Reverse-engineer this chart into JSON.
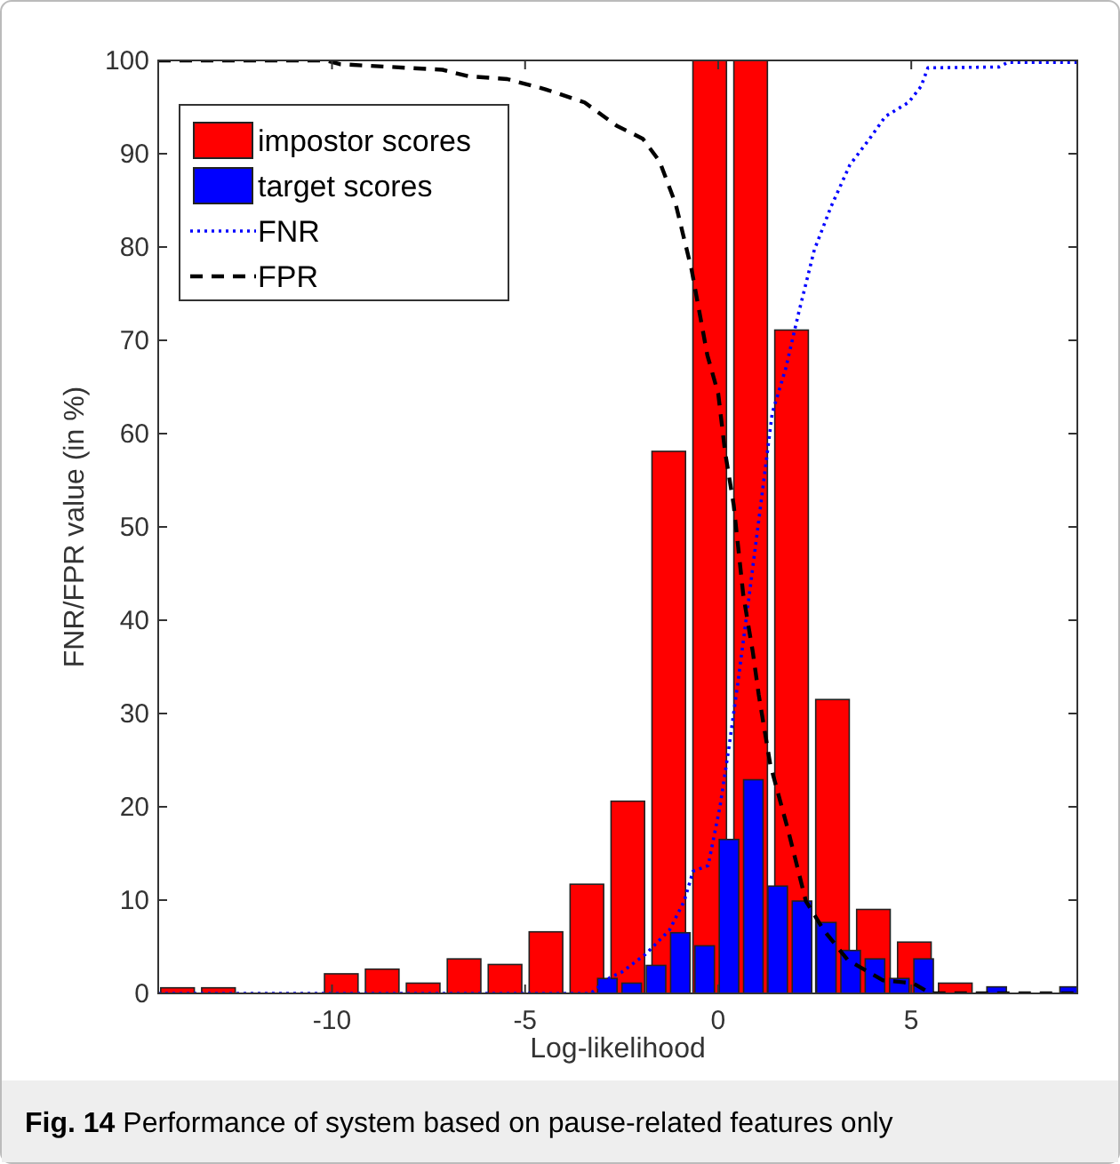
{
  "chart_data": {
    "type": "bar",
    "xlabel": "Log-likelihood",
    "ylabel": "FNR/FPR value (in %)",
    "xlim": [
      -14.5,
      9.3
    ],
    "xticks": [
      -10,
      -5,
      0,
      5
    ],
    "ylim": [
      0,
      100
    ],
    "yticks": [
      0,
      10,
      20,
      30,
      40,
      50,
      60,
      70,
      80,
      90,
      100
    ],
    "grid": false,
    "legend": "top left",
    "annotations": [
      "Fig. 14 Performance of system based on pause-related features only"
    ],
    "series": [
      {
        "name": "impostor scores",
        "color": "#ff0000",
        "x": [
          -14.0,
          -12.94,
          -11.88,
          -10.82,
          -9.76,
          -8.7,
          -7.64,
          -6.58,
          -5.52,
          -4.46,
          -3.4,
          -2.34,
          -1.28,
          -0.22,
          0.84,
          1.9,
          2.96,
          4.02,
          5.08,
          6.14
        ],
        "values": [
          0.6,
          0.6,
          0,
          0,
          2.1,
          2.6,
          1.1,
          3.7,
          3.1,
          6.6,
          11.7,
          20.6,
          58.1,
          100,
          100,
          71.1,
          31.5,
          9.0,
          5.5,
          1.1
        ]
      },
      {
        "name": "target scores",
        "color": "#0000ff",
        "x": [
          -2.87,
          -2.24,
          -1.61,
          -0.98,
          -0.35,
          0.28,
          0.91,
          1.54,
          2.17,
          2.8,
          3.43,
          4.06,
          4.69,
          5.32,
          5.95,
          6.58,
          7.21,
          7.84,
          8.47,
          9.1
        ],
        "values": [
          1.6,
          1.1,
          3.0,
          6.5,
          5.1,
          16.5,
          22.9,
          11.5,
          9.9,
          7.6,
          4.6,
          3.7,
          1.6,
          3.7,
          0,
          0,
          0.7,
          0,
          0,
          0.7
        ]
      },
      {
        "name": "FNR",
        "type": "line",
        "color": "#0000ff",
        "line_style": "dotted",
        "x": [
          -14.5,
          -3.3,
          -2.8,
          -2.49,
          -1.88,
          -1.26,
          -0.88,
          -0.65,
          -0.26,
          0.05,
          0.28,
          0.5,
          0.74,
          1.06,
          1.4,
          1.75,
          2.07,
          2.49,
          2.92,
          3.41,
          3.92,
          4.33,
          4.93,
          5.25,
          5.43,
          7.27,
          7.5,
          9.3
        ],
        "values": [
          0,
          0,
          1.7,
          2.3,
          4.2,
          6.8,
          9.9,
          13.1,
          13.7,
          20.1,
          26.4,
          33,
          40.6,
          51,
          62.2,
          67,
          72.7,
          79.7,
          84.3,
          88.8,
          91.6,
          94,
          95.5,
          97.2,
          99.2,
          99.3,
          99.8,
          99.8
        ]
      },
      {
        "name": "FPR",
        "type": "line",
        "color": "#000000",
        "line_style": "dashed",
        "x": [
          -14.5,
          -10.16,
          -9.8,
          -7.14,
          -6.47,
          -5.46,
          -4.47,
          -3.46,
          -2.63,
          -1.95,
          -1.52,
          -1.1,
          -0.69,
          -0.28,
          0,
          0.18,
          0.4,
          0.65,
          0.9,
          1.05,
          1.35,
          1.81,
          2.27,
          2.73,
          3.35,
          4.27,
          5.04,
          5.5,
          9.3
        ],
        "values": [
          100,
          100,
          99.6,
          99,
          98.3,
          98,
          96.9,
          95.5,
          93,
          91.6,
          89.2,
          84.6,
          77.6,
          68.4,
          64.3,
          58,
          52.4,
          42.7,
          36.5,
          32,
          24.5,
          17.5,
          9.9,
          6.8,
          3.6,
          1.4,
          1.1,
          0,
          0
        ]
      }
    ]
  }
}
